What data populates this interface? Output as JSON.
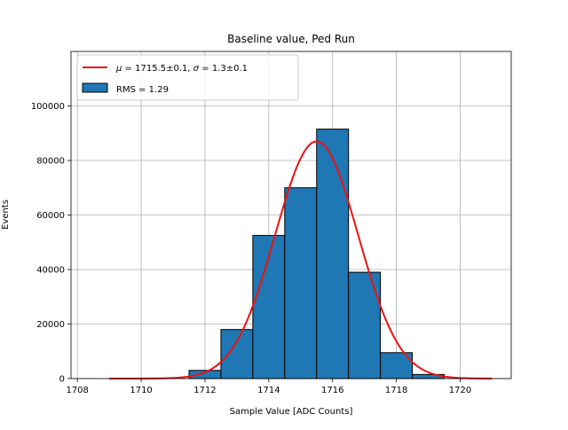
{
  "chart_data": {
    "type": "bar",
    "title": "Baseline value, Ped Run",
    "xlabel": "Sample Value [ADC Counts]",
    "ylabel": "Events",
    "xlim": [
      1707.8,
      1721.6
    ],
    "ylim": [
      0,
      120000
    ],
    "grid": true,
    "legend_placement": "top-left",
    "x_ticks": [
      1708,
      1710,
      1712,
      1714,
      1716,
      1718,
      1720
    ],
    "y_ticks": [
      0,
      20000,
      40000,
      60000,
      80000,
      100000
    ],
    "histogram": {
      "name": "RMS = 1.29",
      "color": "#1f77b4",
      "bin_edges": [
        1708.5,
        1709.5,
        1710.5,
        1711.5,
        1712.5,
        1713.5,
        1714.5,
        1715.5,
        1716.5,
        1717.5,
        1718.5,
        1719.5
      ],
      "values": [
        0,
        0,
        0,
        3000,
        18000,
        52500,
        70000,
        91500,
        39000,
        9500,
        1500
      ]
    },
    "fit": {
      "name": "$\\mu = 1715.5 \\pm 0.1$, $\\sigma = 1.3 \\pm 0.1$",
      "label_text": {
        "mu_symbol": "μ",
        "mu_value": " = 1715.5±0.1, ",
        "sigma_symbol": "σ",
        "sigma_value": " = 1.3±0.1"
      },
      "color": "#ee1111",
      "mu": 1715.5,
      "sigma": 1.3,
      "amplitude": 87000,
      "x_range": [
        1709,
        1721
      ]
    }
  }
}
